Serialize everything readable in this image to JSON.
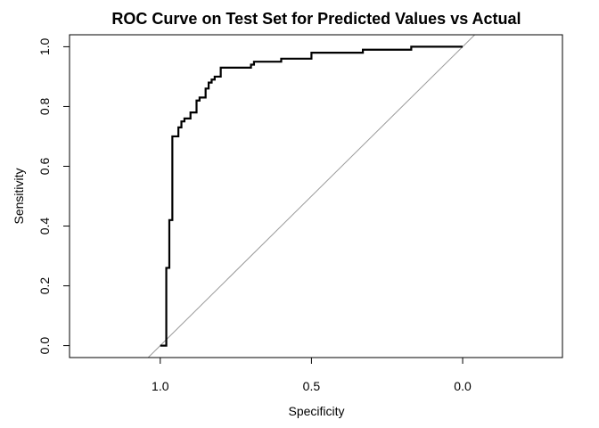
{
  "chart_data": {
    "type": "line",
    "title": "ROC Curve on Test Set for Predicted Values vs Actual",
    "xlabel": "Specificity",
    "ylabel": "Sensitivity",
    "x_reversed": true,
    "xlim": [
      1.3,
      -0.33
    ],
    "ylim": [
      -0.04,
      1.04
    ],
    "xticks": [
      {
        "value": 1.0,
        "label": "1.0"
      },
      {
        "value": 0.5,
        "label": "0.5"
      },
      {
        "value": 0.0,
        "label": "0.0"
      }
    ],
    "yticks": [
      {
        "value": 0.0,
        "label": "0.0"
      },
      {
        "value": 0.2,
        "label": "0.2"
      },
      {
        "value": 0.4,
        "label": "0.4"
      },
      {
        "value": 0.6,
        "label": "0.6"
      },
      {
        "value": 0.8,
        "label": "0.8"
      },
      {
        "value": 1.0,
        "label": "1.0"
      }
    ],
    "grid": false,
    "colors": {
      "curve": "#000000",
      "reference": "#999999"
    },
    "reference_line": {
      "from": [
        1,
        0
      ],
      "to": [
        0,
        1
      ]
    },
    "series": [
      {
        "x": [
          1.0,
          0.98,
          0.98,
          0.97,
          0.97,
          0.96,
          0.96,
          0.94,
          0.94,
          0.93,
          0.93,
          0.92,
          0.92,
          0.9,
          0.9,
          0.88,
          0.88,
          0.87,
          0.87,
          0.85,
          0.85,
          0.84,
          0.84,
          0.83,
          0.83,
          0.82,
          0.82,
          0.8,
          0.8,
          0.7,
          0.7,
          0.69,
          0.69,
          0.6,
          0.6,
          0.5,
          0.5,
          0.33,
          0.33,
          0.17,
          0.17,
          0.0
        ],
        "y": [
          0.0,
          0.0,
          0.26,
          0.26,
          0.42,
          0.42,
          0.7,
          0.7,
          0.73,
          0.73,
          0.75,
          0.75,
          0.76,
          0.76,
          0.78,
          0.78,
          0.82,
          0.82,
          0.83,
          0.83,
          0.86,
          0.86,
          0.88,
          0.88,
          0.89,
          0.89,
          0.9,
          0.9,
          0.93,
          0.93,
          0.94,
          0.94,
          0.95,
          0.95,
          0.96,
          0.96,
          0.98,
          0.98,
          0.99,
          0.99,
          1.0,
          1.0
        ]
      }
    ]
  }
}
